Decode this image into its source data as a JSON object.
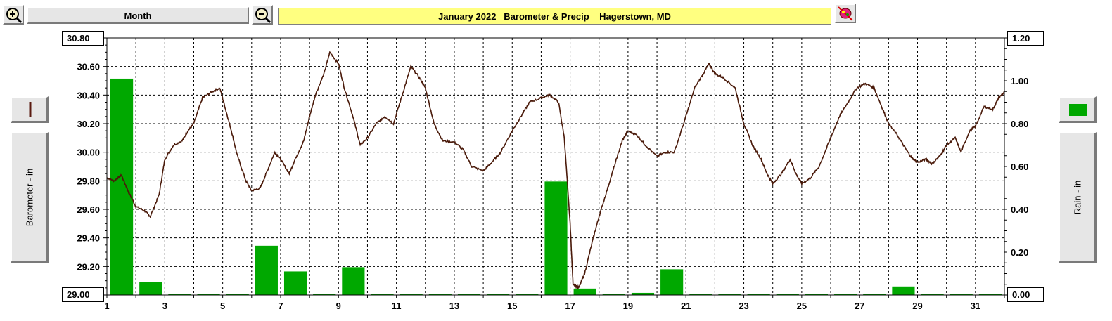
{
  "toolbar": {
    "zoom_in_icon": "zoom-in-magnifier-icon",
    "period_label": "Month",
    "zoom_out_icon": "zoom-out-magnifier-icon",
    "title": "January 2022   Barometer & Precip    Hagerstown, MD",
    "title_bg": "#ffff80",
    "color_tool_icon": "paint-palette-icon"
  },
  "left_axis": {
    "label": "Barometer - in",
    "legend_swatch": "brown-line-swatch",
    "top_value": "30.80",
    "bottom_value": "29.00",
    "color": "#4a1a0a"
  },
  "right_axis": {
    "label": "Rain - in",
    "legend_swatch": "green-bar-swatch",
    "top_value": "1.20",
    "bottom_value": "0.00",
    "color": "#00a800"
  },
  "chart_data": {
    "type": "line+bar",
    "title": "January 2022   Barometer & Precip    Hagerstown, MD",
    "xlabel": "",
    "x_ticks": [
      "1",
      "3",
      "5",
      "7",
      "9",
      "11",
      "13",
      "15",
      "17",
      "19",
      "21",
      "23",
      "25",
      "27",
      "29",
      "31"
    ],
    "xlim": [
      1,
      32
    ],
    "grid": true,
    "series": [
      {
        "name": "Barometer - in",
        "type": "line",
        "axis": "left",
        "ylim": [
          29.0,
          30.8
        ],
        "y_ticks": [
          "30.80",
          "30.60",
          "30.40",
          "30.20",
          "30.00",
          "29.80",
          "29.60",
          "29.40",
          "29.20",
          "29.00"
        ],
        "points": [
          [
            1.0,
            29.82
          ],
          [
            1.25,
            29.8
          ],
          [
            1.5,
            29.84
          ],
          [
            1.75,
            29.72
          ],
          [
            2.0,
            29.62
          ],
          [
            2.3,
            29.59
          ],
          [
            2.5,
            29.55
          ],
          [
            2.8,
            29.7
          ],
          [
            3.0,
            29.95
          ],
          [
            3.3,
            30.05
          ],
          [
            3.6,
            30.08
          ],
          [
            3.8,
            30.15
          ],
          [
            4.0,
            30.2
          ],
          [
            4.3,
            30.38
          ],
          [
            4.6,
            30.42
          ],
          [
            4.9,
            30.45
          ],
          [
            5.1,
            30.3
          ],
          [
            5.3,
            30.15
          ],
          [
            5.5,
            29.98
          ],
          [
            5.8,
            29.8
          ],
          [
            6.0,
            29.73
          ],
          [
            6.3,
            29.75
          ],
          [
            6.5,
            29.85
          ],
          [
            6.8,
            30.0
          ],
          [
            7.0,
            29.95
          ],
          [
            7.3,
            29.85
          ],
          [
            7.5,
            29.95
          ],
          [
            7.8,
            30.08
          ],
          [
            8.0,
            30.25
          ],
          [
            8.2,
            30.4
          ],
          [
            8.5,
            30.55
          ],
          [
            8.7,
            30.7
          ],
          [
            9.0,
            30.62
          ],
          [
            9.2,
            30.45
          ],
          [
            9.5,
            30.25
          ],
          [
            9.75,
            30.05
          ],
          [
            10.0,
            30.1
          ],
          [
            10.3,
            30.2
          ],
          [
            10.6,
            30.25
          ],
          [
            10.9,
            30.2
          ],
          [
            11.2,
            30.4
          ],
          [
            11.5,
            30.6
          ],
          [
            11.8,
            30.52
          ],
          [
            12.0,
            30.45
          ],
          [
            12.3,
            30.2
          ],
          [
            12.6,
            30.08
          ],
          [
            13.0,
            30.07
          ],
          [
            13.3,
            30.02
          ],
          [
            13.6,
            29.9
          ],
          [
            14.0,
            29.87
          ],
          [
            14.3,
            29.93
          ],
          [
            14.6,
            30.0
          ],
          [
            15.0,
            30.15
          ],
          [
            15.3,
            30.25
          ],
          [
            15.6,
            30.35
          ],
          [
            16.0,
            30.38
          ],
          [
            16.3,
            30.4
          ],
          [
            16.6,
            30.35
          ],
          [
            16.8,
            30.1
          ],
          [
            17.0,
            29.5
          ],
          [
            17.1,
            29.08
          ],
          [
            17.3,
            29.05
          ],
          [
            17.5,
            29.15
          ],
          [
            17.8,
            29.4
          ],
          [
            18.0,
            29.55
          ],
          [
            18.3,
            29.75
          ],
          [
            18.6,
            29.95
          ],
          [
            18.8,
            30.08
          ],
          [
            19.0,
            30.15
          ],
          [
            19.3,
            30.12
          ],
          [
            19.6,
            30.05
          ],
          [
            20.0,
            29.97
          ],
          [
            20.3,
            30.0
          ],
          [
            20.6,
            30.0
          ],
          [
            21.0,
            30.25
          ],
          [
            21.3,
            30.45
          ],
          [
            21.6,
            30.55
          ],
          [
            21.8,
            30.62
          ],
          [
            22.0,
            30.55
          ],
          [
            22.3,
            30.52
          ],
          [
            22.7,
            30.45
          ],
          [
            23.0,
            30.2
          ],
          [
            23.3,
            30.05
          ],
          [
            23.6,
            29.95
          ],
          [
            23.8,
            29.85
          ],
          [
            24.0,
            29.78
          ],
          [
            24.3,
            29.85
          ],
          [
            24.6,
            29.95
          ],
          [
            24.8,
            29.85
          ],
          [
            25.0,
            29.78
          ],
          [
            25.3,
            29.82
          ],
          [
            25.6,
            29.9
          ],
          [
            26.0,
            30.1
          ],
          [
            26.3,
            30.25
          ],
          [
            26.6,
            30.35
          ],
          [
            26.9,
            30.45
          ],
          [
            27.2,
            30.48
          ],
          [
            27.5,
            30.45
          ],
          [
            27.8,
            30.3
          ],
          [
            28.0,
            30.2
          ],
          [
            28.3,
            30.12
          ],
          [
            28.6,
            30.02
          ],
          [
            28.8,
            29.96
          ],
          [
            29.0,
            29.93
          ],
          [
            29.3,
            29.95
          ],
          [
            29.5,
            29.92
          ],
          [
            29.8,
            29.98
          ],
          [
            30.0,
            30.05
          ],
          [
            30.3,
            30.1
          ],
          [
            30.5,
            30.0
          ],
          [
            30.8,
            30.15
          ],
          [
            31.0,
            30.18
          ],
          [
            31.3,
            30.32
          ],
          [
            31.6,
            30.3
          ],
          [
            31.8,
            30.38
          ],
          [
            32.0,
            30.42
          ]
        ]
      },
      {
        "name": "Rain - in",
        "type": "bar",
        "axis": "right",
        "ylim": [
          0.0,
          1.2
        ],
        "y_ticks": [
          "1.20",
          "1.00",
          "0.80",
          "0.60",
          "0.40",
          "0.20",
          "0.00"
        ],
        "days": [
          1,
          2,
          3,
          4,
          5,
          6,
          7,
          8,
          9,
          10,
          11,
          12,
          13,
          14,
          15,
          16,
          17,
          18,
          19,
          20,
          21,
          22,
          23,
          24,
          25,
          26,
          27,
          28,
          29,
          30,
          31
        ],
        "values": [
          1.01,
          0.06,
          0.0,
          0.0,
          0.0,
          0.23,
          0.11,
          0.0,
          0.13,
          0.0,
          0.0,
          0.0,
          0.0,
          0.0,
          0.0,
          0.53,
          0.03,
          0.0,
          0.01,
          0.12,
          0.0,
          0.0,
          0.0,
          0.0,
          0.0,
          0.0,
          0.0,
          0.04,
          0.0,
          0.0,
          0.0
        ]
      }
    ]
  }
}
